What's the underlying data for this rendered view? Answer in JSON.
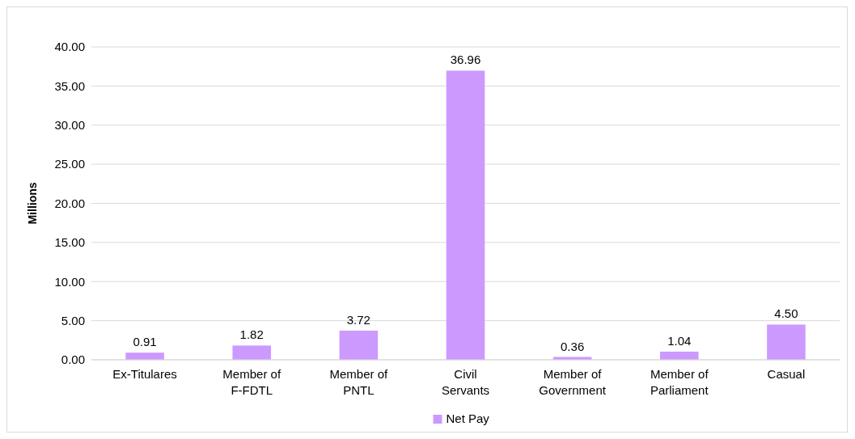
{
  "chart_data": {
    "type": "bar",
    "ylabel": "Millions",
    "categories": [
      "Ex-Titulares",
      "Member of F-FDTL",
      "Member of PNTL",
      "Civil Servants",
      "Member of Government",
      "Member of Parliament",
      "Casual"
    ],
    "series": [
      {
        "name": "Net Pay",
        "color": "#cc99ff",
        "values": [
          0.91,
          1.82,
          3.72,
          36.96,
          0.36,
          1.04,
          4.5
        ]
      }
    ],
    "value_labels": [
      "0.91",
      "1.82",
      "3.72",
      "36.96",
      "0.36",
      "1.04",
      "4.50"
    ],
    "ylim": [
      0,
      40
    ],
    "yticks": [
      {
        "value": 0,
        "label": "0.00"
      },
      {
        "value": 5,
        "label": "5.00"
      },
      {
        "value": 10,
        "label": "10.00"
      },
      {
        "value": 15,
        "label": "15.00"
      },
      {
        "value": 20,
        "label": "20.00"
      },
      {
        "value": 25,
        "label": "25.00"
      },
      {
        "value": 30,
        "label": "30.00"
      },
      {
        "value": 35,
        "label": "35.00"
      },
      {
        "value": 40,
        "label": "40.00"
      }
    ],
    "grid": "y",
    "legend": "bottom"
  }
}
